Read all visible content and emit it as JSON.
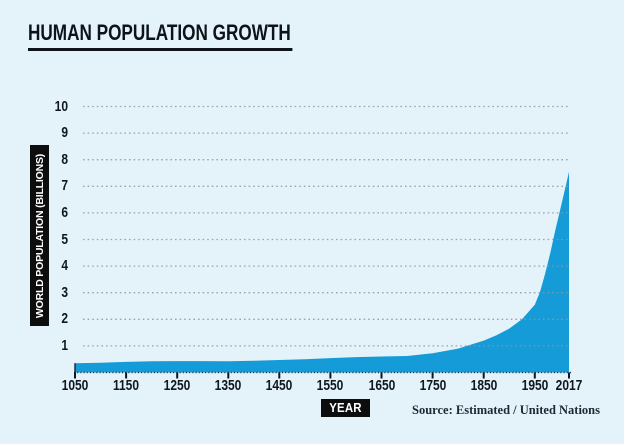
{
  "page": {
    "background": "#e4f2fa"
  },
  "title": "HUMAN POPULATION GROWTH",
  "chart_data": {
    "type": "area",
    "title": "HUMAN POPULATION GROWTH",
    "xlabel": "YEAR",
    "ylabel": "WORLD POPULATION (BILLIONS)",
    "source": "Source: Estimated / United Nations",
    "xlim": [
      1050,
      2017
    ],
    "ylim": [
      0,
      10
    ],
    "x_ticks": [
      "1050",
      "1150",
      "1250",
      "1350",
      "1450",
      "1550",
      "1650",
      "1750",
      "1850",
      "1950",
      "2017"
    ],
    "y_ticks": [
      1,
      2,
      3,
      4,
      5,
      6,
      7,
      8,
      9,
      10
    ],
    "grid": "horizontal-dotted",
    "legend": "none",
    "series": [
      {
        "name": "World population (billions)",
        "x": [
          1050,
          1100,
          1150,
          1200,
          1250,
          1300,
          1350,
          1400,
          1450,
          1500,
          1550,
          1600,
          1650,
          1700,
          1750,
          1800,
          1850,
          1875,
          1900,
          1925,
          1950,
          1960,
          1970,
          1980,
          1990,
          2000,
          2010,
          2017
        ],
        "y": [
          0.35,
          0.37,
          0.4,
          0.42,
          0.43,
          0.43,
          0.42,
          0.44,
          0.47,
          0.5,
          0.54,
          0.58,
          0.6,
          0.62,
          0.72,
          0.9,
          1.2,
          1.4,
          1.65,
          2.0,
          2.55,
          3.02,
          3.7,
          4.46,
          5.33,
          6.14,
          6.96,
          7.55
        ]
      }
    ],
    "colors": {
      "area": "#159bd8",
      "background": "#e4f2fa",
      "grid": "#8d979e",
      "axis": "#222e3a",
      "text": "#10181f",
      "label_box": "#0d0d0d"
    }
  }
}
